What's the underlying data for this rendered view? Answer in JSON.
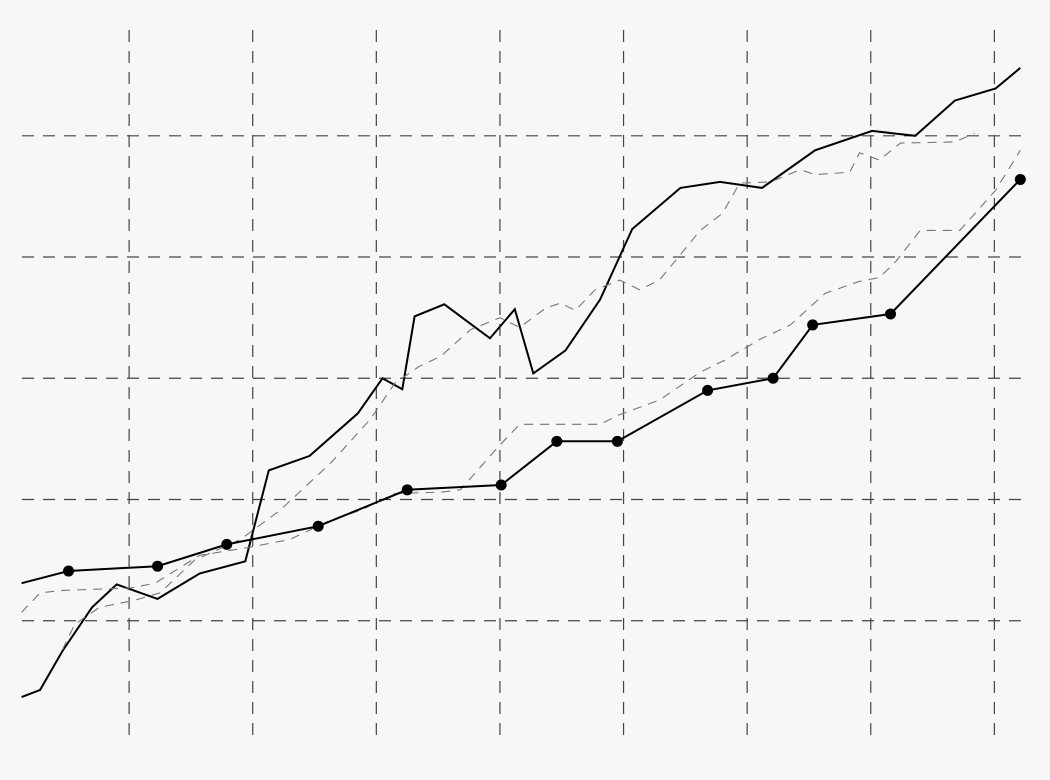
{
  "chart_data": {
    "type": "line",
    "title": "",
    "xlabel": "",
    "ylabel": "",
    "xlim": [
      0,
      8.45
    ],
    "ylim": [
      0,
      6.12
    ],
    "grid": true,
    "grid_style": "dashed",
    "x_grid": [
      1,
      2,
      3,
      4,
      5,
      6,
      7,
      8
    ],
    "y_grid": [
      1,
      2,
      3,
      4,
      5
    ],
    "background": "#f7f7f7",
    "series": [
      {
        "style": "solid",
        "color": "#000000",
        "markers": false,
        "points": [
          [
            0.13,
            0.37
          ],
          [
            0.28,
            0.43
          ],
          [
            0.46,
            0.75
          ],
          [
            0.7,
            1.11
          ],
          [
            0.9,
            1.3
          ],
          [
            1.23,
            1.18
          ],
          [
            1.57,
            1.39
          ],
          [
            1.94,
            1.49
          ],
          [
            2.13,
            2.24
          ],
          [
            2.46,
            2.36
          ],
          [
            2.85,
            2.71
          ],
          [
            3.05,
            3.0
          ],
          [
            3.21,
            2.91
          ],
          [
            3.31,
            3.51
          ],
          [
            3.55,
            3.61
          ],
          [
            3.76,
            3.45
          ],
          [
            3.92,
            3.33
          ],
          [
            4.12,
            3.57
          ],
          [
            4.27,
            3.04
          ],
          [
            4.53,
            3.23
          ],
          [
            4.81,
            3.65
          ],
          [
            5.07,
            4.23
          ],
          [
            5.46,
            4.57
          ],
          [
            5.78,
            4.62
          ],
          [
            6.12,
            4.57
          ],
          [
            6.55,
            4.88
          ],
          [
            7.01,
            5.04
          ],
          [
            7.36,
            5.0
          ],
          [
            7.68,
            5.29
          ],
          [
            8.01,
            5.39
          ],
          [
            8.21,
            5.56
          ]
        ]
      },
      {
        "style": "dashed",
        "color": "#777777",
        "markers": false,
        "points": [
          [
            0.46,
            0.76
          ],
          [
            0.56,
            0.97
          ],
          [
            0.76,
            1.11
          ],
          [
            1.05,
            1.17
          ],
          [
            1.25,
            1.23
          ],
          [
            1.53,
            1.5
          ],
          [
            1.9,
            1.67
          ],
          [
            2.22,
            1.91
          ],
          [
            2.63,
            2.3
          ],
          [
            2.95,
            2.66
          ],
          [
            3.15,
            2.96
          ],
          [
            3.35,
            3.1
          ],
          [
            3.52,
            3.18
          ],
          [
            3.76,
            3.4
          ],
          [
            4.0,
            3.5
          ],
          [
            4.16,
            3.42
          ],
          [
            4.37,
            3.58
          ],
          [
            4.49,
            3.62
          ],
          [
            4.61,
            3.56
          ],
          [
            4.77,
            3.73
          ],
          [
            4.97,
            3.81
          ],
          [
            5.13,
            3.73
          ],
          [
            5.29,
            3.81
          ],
          [
            5.46,
            4.02
          ],
          [
            5.62,
            4.22
          ],
          [
            5.8,
            4.36
          ],
          [
            5.94,
            4.61
          ],
          [
            6.19,
            4.62
          ],
          [
            6.43,
            4.72
          ],
          [
            6.55,
            4.68
          ],
          [
            6.83,
            4.7
          ],
          [
            6.91,
            4.86
          ],
          [
            7.07,
            4.8
          ],
          [
            7.24,
            4.94
          ],
          [
            7.68,
            4.95
          ],
          [
            7.84,
            5.02
          ]
        ]
      },
      {
        "style": "dashed",
        "color": "#777777",
        "markers": false,
        "points": [
          [
            0.13,
            1.07
          ],
          [
            0.28,
            1.23
          ],
          [
            0.46,
            1.25
          ],
          [
            1.01,
            1.27
          ],
          [
            1.21,
            1.31
          ],
          [
            1.57,
            1.54
          ],
          [
            1.94,
            1.6
          ],
          [
            2.3,
            1.67
          ],
          [
            2.63,
            1.83
          ],
          [
            2.87,
            1.91
          ],
          [
            3.15,
            2.05
          ],
          [
            3.52,
            2.06
          ],
          [
            3.68,
            2.08
          ],
          [
            4.0,
            2.45
          ],
          [
            4.16,
            2.62
          ],
          [
            4.81,
            2.62
          ],
          [
            4.97,
            2.7
          ],
          [
            5.29,
            2.82
          ],
          [
            5.62,
            3.05
          ],
          [
            5.82,
            3.15
          ],
          [
            6.1,
            3.32
          ],
          [
            6.35,
            3.44
          ],
          [
            6.63,
            3.7
          ],
          [
            6.91,
            3.8
          ],
          [
            7.07,
            3.83
          ],
          [
            7.2,
            3.96
          ],
          [
            7.4,
            4.22
          ],
          [
            7.72,
            4.22
          ],
          [
            8.01,
            4.55
          ],
          [
            8.21,
            4.88
          ]
        ]
      },
      {
        "style": "solid",
        "color": "#000000",
        "markers": true,
        "points": [
          [
            0.13,
            1.31
          ],
          [
            0.51,
            1.41
          ],
          [
            1.23,
            1.45
          ],
          [
            1.79,
            1.63
          ],
          [
            2.53,
            1.78
          ],
          [
            3.25,
            2.08
          ],
          [
            4.01,
            2.12
          ],
          [
            4.46,
            2.48
          ],
          [
            4.95,
            2.48
          ],
          [
            5.68,
            2.9
          ],
          [
            6.21,
            3.0
          ],
          [
            6.53,
            3.44
          ],
          [
            7.16,
            3.53
          ],
          [
            8.21,
            4.64
          ]
        ]
      }
    ]
  }
}
